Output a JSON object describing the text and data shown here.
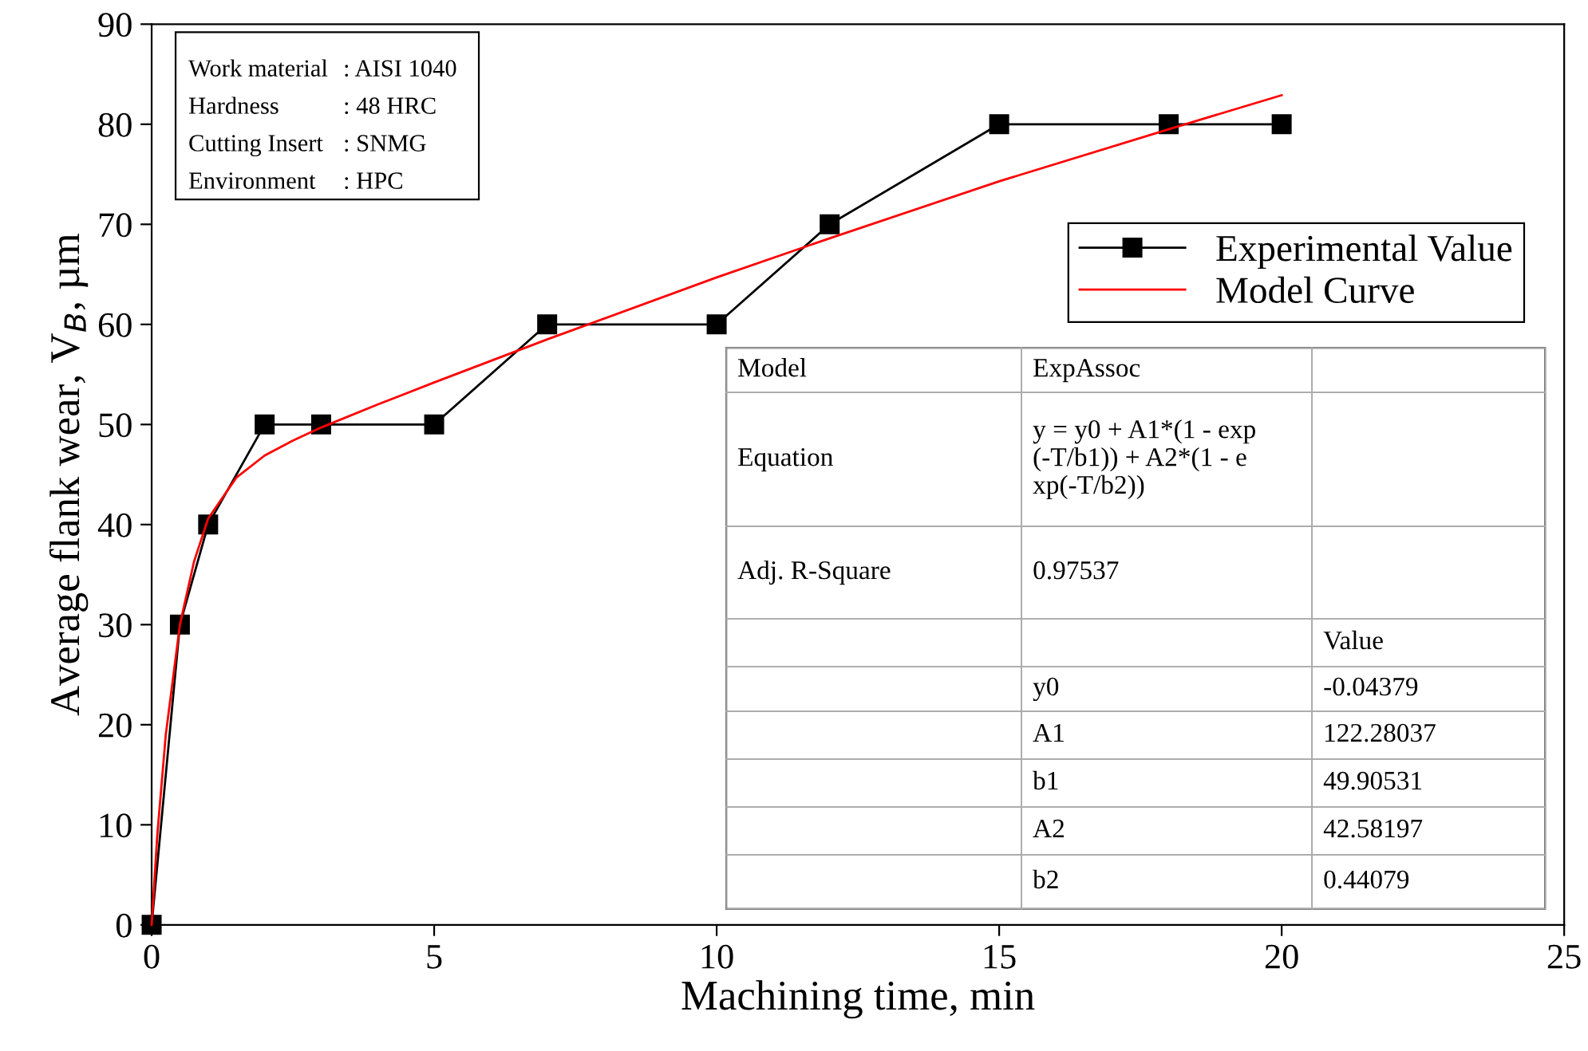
{
  "chart_data": {
    "type": "line",
    "xlabel": "Machining time, min",
    "ylabel": "Average flank wear, V$_{B}$, µm",
    "xlim": [
      0,
      25
    ],
    "xticks": [
      0,
      5,
      10,
      15,
      20,
      25
    ],
    "ylim": [
      0,
      90
    ],
    "yticks": [
      0,
      10,
      20,
      30,
      40,
      50,
      60,
      70,
      80,
      90
    ],
    "grid": false,
    "legend": "top right",
    "series": [
      {
        "name": "Experimental Value",
        "color": "#000000",
        "marker": "square",
        "line_style": "solid",
        "x": [
          0,
          0.5,
          1,
          2,
          3,
          5,
          7,
          10,
          12,
          15,
          18,
          20
        ],
        "values": [
          0,
          30,
          40,
          50,
          50,
          50,
          60,
          60,
          70,
          80,
          80,
          80
        ]
      },
      {
        "name": "Model Curve",
        "color": "#ff0000",
        "marker": "none",
        "line_style": "solid",
        "x": [
          0,
          0.1,
          0.25,
          0.5,
          0.75,
          1,
          1.5,
          2,
          2.5,
          3,
          4,
          5,
          7,
          10,
          12,
          15,
          18,
          20
        ],
        "values": [
          0,
          9.0,
          19.0,
          30.0,
          36.3,
          40.6,
          44.7,
          46.9,
          48.4,
          49.7,
          52.0,
          54.2,
          58.5,
          64.7,
          68.6,
          74.3,
          79.5,
          82.9
        ]
      }
    ],
    "annotations": [
      "Work material",
      ": AISI 1040",
      "Hardness",
      ": 48 HRC",
      "Cutting Insert",
      ": SNMG",
      "Environment",
      ": HPC",
      "Model",
      "ExpAssoc",
      "Equation",
      "y = y0 + A1*(1 - exp\n(-T/b1)) + A2*(1 - e\nxp(-T/b2))",
      "Adj. R-Square",
      "0.97537",
      "Value",
      "y0",
      "-0.04379",
      "A1",
      "122.28037",
      "b1",
      "49.90531",
      "A2",
      "42.58197",
      "b2",
      "0.44079"
    ]
  }
}
